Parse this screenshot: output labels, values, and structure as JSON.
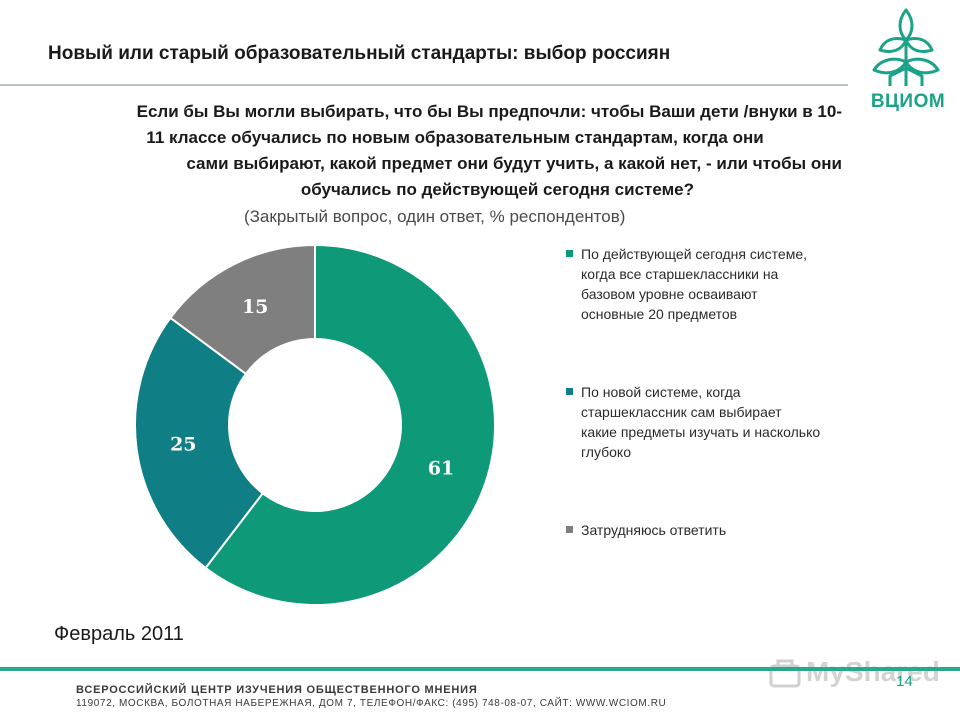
{
  "header": {
    "title": "Новый или старый образовательный стандарты: выбор россиян"
  },
  "logo": {
    "text": "ВЦИОМ"
  },
  "question": {
    "line1": "Если бы Вы могли выбирать, что бы Вы предпочли: чтобы Ваши дети /внуки в 10-",
    "line2": "11 классе обучались по новым образовательным стандартам, когда они",
    "line3": "сами выбирают, какой предмет они будут учить, а какой нет,  - или чтобы они",
    "line4": "обучались по действующей сегодня системе?"
  },
  "subtitle": "(Закрытый  вопрос, один ответ, % респондентов)",
  "chart_data": {
    "type": "pie",
    "variant": "donut",
    "title": "Если бы Вы могли выбирать, что бы Вы предпочли: чтобы Ваши дети /внуки в 10-11 классе обучались по новым образовательным стандартам, когда они сами выбирают, какой предмет они будут учить, а какой нет,  - или чтобы они обучались по действующей сегодня системе?",
    "subtitle": "(Закрытый  вопрос, один ответ, % респондентов)",
    "legend_position": "right",
    "slices": [
      {
        "label": "По действующей сегодня системе, когда все старшеклассники на базовом уровне осваивают основные 20 предметов",
        "value": 61,
        "display": "61",
        "color": "#0e9a78"
      },
      {
        "label": "По новой системе, когда старшеклассник сам выбирает какие предметы изучать и насколько глубоко",
        "value": 25,
        "display": "25",
        "color": "#0f7f85"
      },
      {
        "label": "Затрудняюсь ответить",
        "value": 15,
        "display": "15",
        "color": "#7f7f7f"
      }
    ]
  },
  "date_label": "Февраль 2011",
  "footer": {
    "line1": "ВСЕРОССИЙСКИЙ ЦЕНТР ИЗУЧЕНИЯ ОБЩЕСТВЕННОГО МНЕНИЯ",
    "line2": "119072, МОСКВА, БОЛОТНАЯ НАБЕРЕЖНАЯ, ДОМ 7, ТЕЛЕФОН/ФАКС: (495) 748-08-07, САЙТ: WWW.WCIOM.RU",
    "page_number": "14"
  },
  "watermark": {
    "text": "MyShared"
  },
  "colors": {
    "accent": "#1aa386",
    "rule": "#2aa88a"
  }
}
